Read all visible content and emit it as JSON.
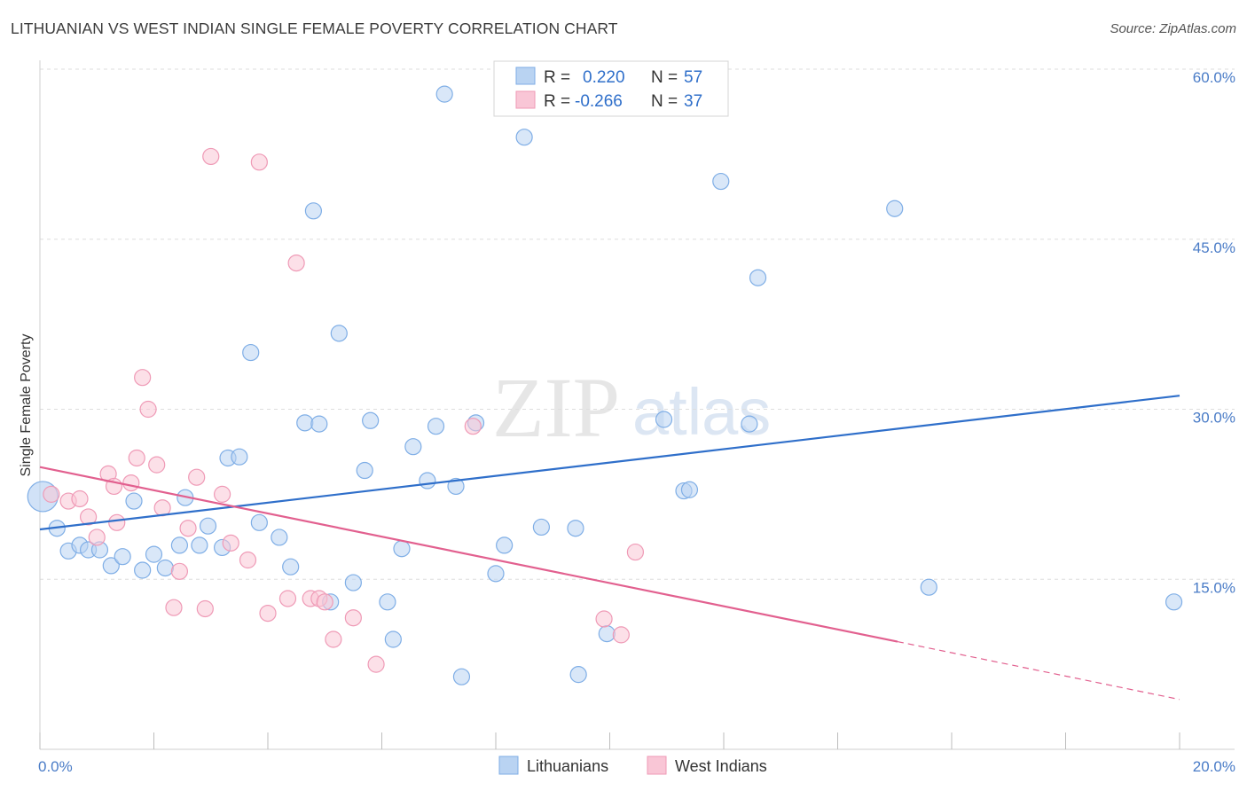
{
  "header": {
    "title": "LITHUANIAN VS WEST INDIAN SINGLE FEMALE POVERTY CORRELATION CHART",
    "source": "Source: ZipAtlas.com"
  },
  "watermark": {
    "part1": "ZIP",
    "part2": "atlas"
  },
  "legend": {
    "rows": [
      {
        "r_label": "R =",
        "r_value": "0.220",
        "n_label": "N =",
        "n_value": "57"
      },
      {
        "r_label": "R =",
        "r_value": "-0.266",
        "n_label": "N =",
        "n_value": "37"
      }
    ]
  },
  "bottom_legend": {
    "series1": "Lithuanians",
    "series2": "West Indians"
  },
  "colors": {
    "blue_fill": "#b9d3f2",
    "blue_stroke": "#7faee6",
    "blue_line": "#2f6fca",
    "pink_fill": "#f9c6d6",
    "pink_stroke": "#ef9ab6",
    "pink_line": "#e2608f",
    "tick_text": "#4a7cc7",
    "r_value_text": "#2f6fca"
  },
  "chart_data": {
    "type": "scatter",
    "title": "LITHUANIAN VS WEST INDIAN SINGLE FEMALE POVERTY CORRELATION CHART",
    "xlabel": "",
    "ylabel": "Single Female Poverty",
    "xlim": [
      0,
      20
    ],
    "ylim": [
      0,
      61
    ],
    "x_tick_labels": [
      "0.0%",
      "20.0%"
    ],
    "y_ticks": [
      15,
      30,
      45,
      60
    ],
    "y_tick_labels": [
      "15.0%",
      "30.0%",
      "45.0%",
      "60.0%"
    ],
    "grid": true,
    "series": [
      {
        "name": "Lithuanians",
        "color": "#b9d3f2",
        "R": 0.22,
        "N": 57,
        "trend": {
          "x0": 0,
          "y0": 19.4,
          "x1": 20,
          "y1": 31.2
        },
        "points": [
          [
            0.05,
            22.3
          ],
          [
            0.3,
            19.5
          ],
          [
            0.5,
            17.5
          ],
          [
            0.7,
            18.0
          ],
          [
            0.85,
            17.6
          ],
          [
            1.05,
            17.6
          ],
          [
            1.25,
            16.2
          ],
          [
            1.45,
            17.0
          ],
          [
            1.65,
            21.9
          ],
          [
            1.8,
            15.8
          ],
          [
            2.0,
            17.2
          ],
          [
            2.2,
            16.0
          ],
          [
            2.45,
            18.0
          ],
          [
            2.55,
            22.2
          ],
          [
            2.8,
            18.0
          ],
          [
            2.95,
            19.7
          ],
          [
            3.2,
            17.8
          ],
          [
            3.3,
            25.7
          ],
          [
            3.5,
            25.8
          ],
          [
            3.7,
            35.0
          ],
          [
            3.85,
            20.0
          ],
          [
            4.2,
            18.7
          ],
          [
            4.4,
            16.1
          ],
          [
            4.65,
            28.8
          ],
          [
            4.8,
            47.5
          ],
          [
            5.1,
            13.0
          ],
          [
            5.25,
            36.7
          ],
          [
            5.5,
            14.7
          ],
          [
            5.7,
            24.6
          ],
          [
            5.8,
            29.0
          ],
          [
            6.1,
            13.0
          ],
          [
            6.2,
            9.7
          ],
          [
            6.35,
            17.7
          ],
          [
            6.55,
            26.7
          ],
          [
            6.8,
            23.7
          ],
          [
            6.95,
            28.5
          ],
          [
            7.1,
            57.8
          ],
          [
            7.3,
            23.2
          ],
          [
            7.4,
            6.4
          ],
          [
            7.65,
            28.8
          ],
          [
            8.0,
            15.5
          ],
          [
            8.15,
            18.0
          ],
          [
            8.5,
            54.0
          ],
          [
            8.8,
            19.6
          ],
          [
            9.4,
            19.5
          ],
          [
            9.45,
            6.6
          ],
          [
            9.95,
            10.2
          ],
          [
            10.95,
            29.1
          ],
          [
            11.3,
            22.8
          ],
          [
            11.4,
            22.9
          ],
          [
            11.95,
            50.1
          ],
          [
            12.45,
            28.7
          ],
          [
            12.6,
            41.6
          ],
          [
            15.0,
            47.7
          ],
          [
            15.6,
            14.3
          ],
          [
            19.9,
            13.0
          ],
          [
            4.9,
            28.7
          ]
        ]
      },
      {
        "name": "West Indians",
        "color": "#f9c6d6",
        "R": -0.266,
        "N": 37,
        "trend": {
          "x0": 0,
          "y0": 24.9,
          "x1": 15.05,
          "y1": 9.5,
          "dash_x1": 20,
          "dash_y1": 4.4
        },
        "points": [
          [
            0.2,
            22.5
          ],
          [
            0.5,
            21.9
          ],
          [
            0.7,
            22.1
          ],
          [
            0.85,
            20.5
          ],
          [
            1.0,
            18.7
          ],
          [
            1.2,
            24.3
          ],
          [
            1.3,
            23.2
          ],
          [
            1.35,
            20.0
          ],
          [
            1.6,
            23.5
          ],
          [
            1.7,
            25.7
          ],
          [
            1.8,
            32.8
          ],
          [
            1.9,
            30.0
          ],
          [
            2.05,
            25.1
          ],
          [
            2.15,
            21.3
          ],
          [
            2.35,
            12.5
          ],
          [
            2.45,
            15.7
          ],
          [
            2.6,
            19.5
          ],
          [
            2.75,
            24.0
          ],
          [
            2.9,
            12.4
          ],
          [
            3.0,
            52.3
          ],
          [
            3.2,
            22.5
          ],
          [
            3.35,
            18.2
          ],
          [
            3.65,
            16.7
          ],
          [
            3.85,
            51.8
          ],
          [
            4.0,
            12.0
          ],
          [
            4.35,
            13.3
          ],
          [
            4.5,
            42.9
          ],
          [
            4.75,
            13.3
          ],
          [
            4.9,
            13.3
          ],
          [
            5.0,
            13.0
          ],
          [
            5.15,
            9.7
          ],
          [
            5.5,
            11.6
          ],
          [
            5.9,
            7.5
          ],
          [
            7.6,
            28.5
          ],
          [
            9.9,
            11.5
          ],
          [
            10.2,
            10.1
          ],
          [
            10.45,
            17.4
          ]
        ]
      }
    ]
  }
}
